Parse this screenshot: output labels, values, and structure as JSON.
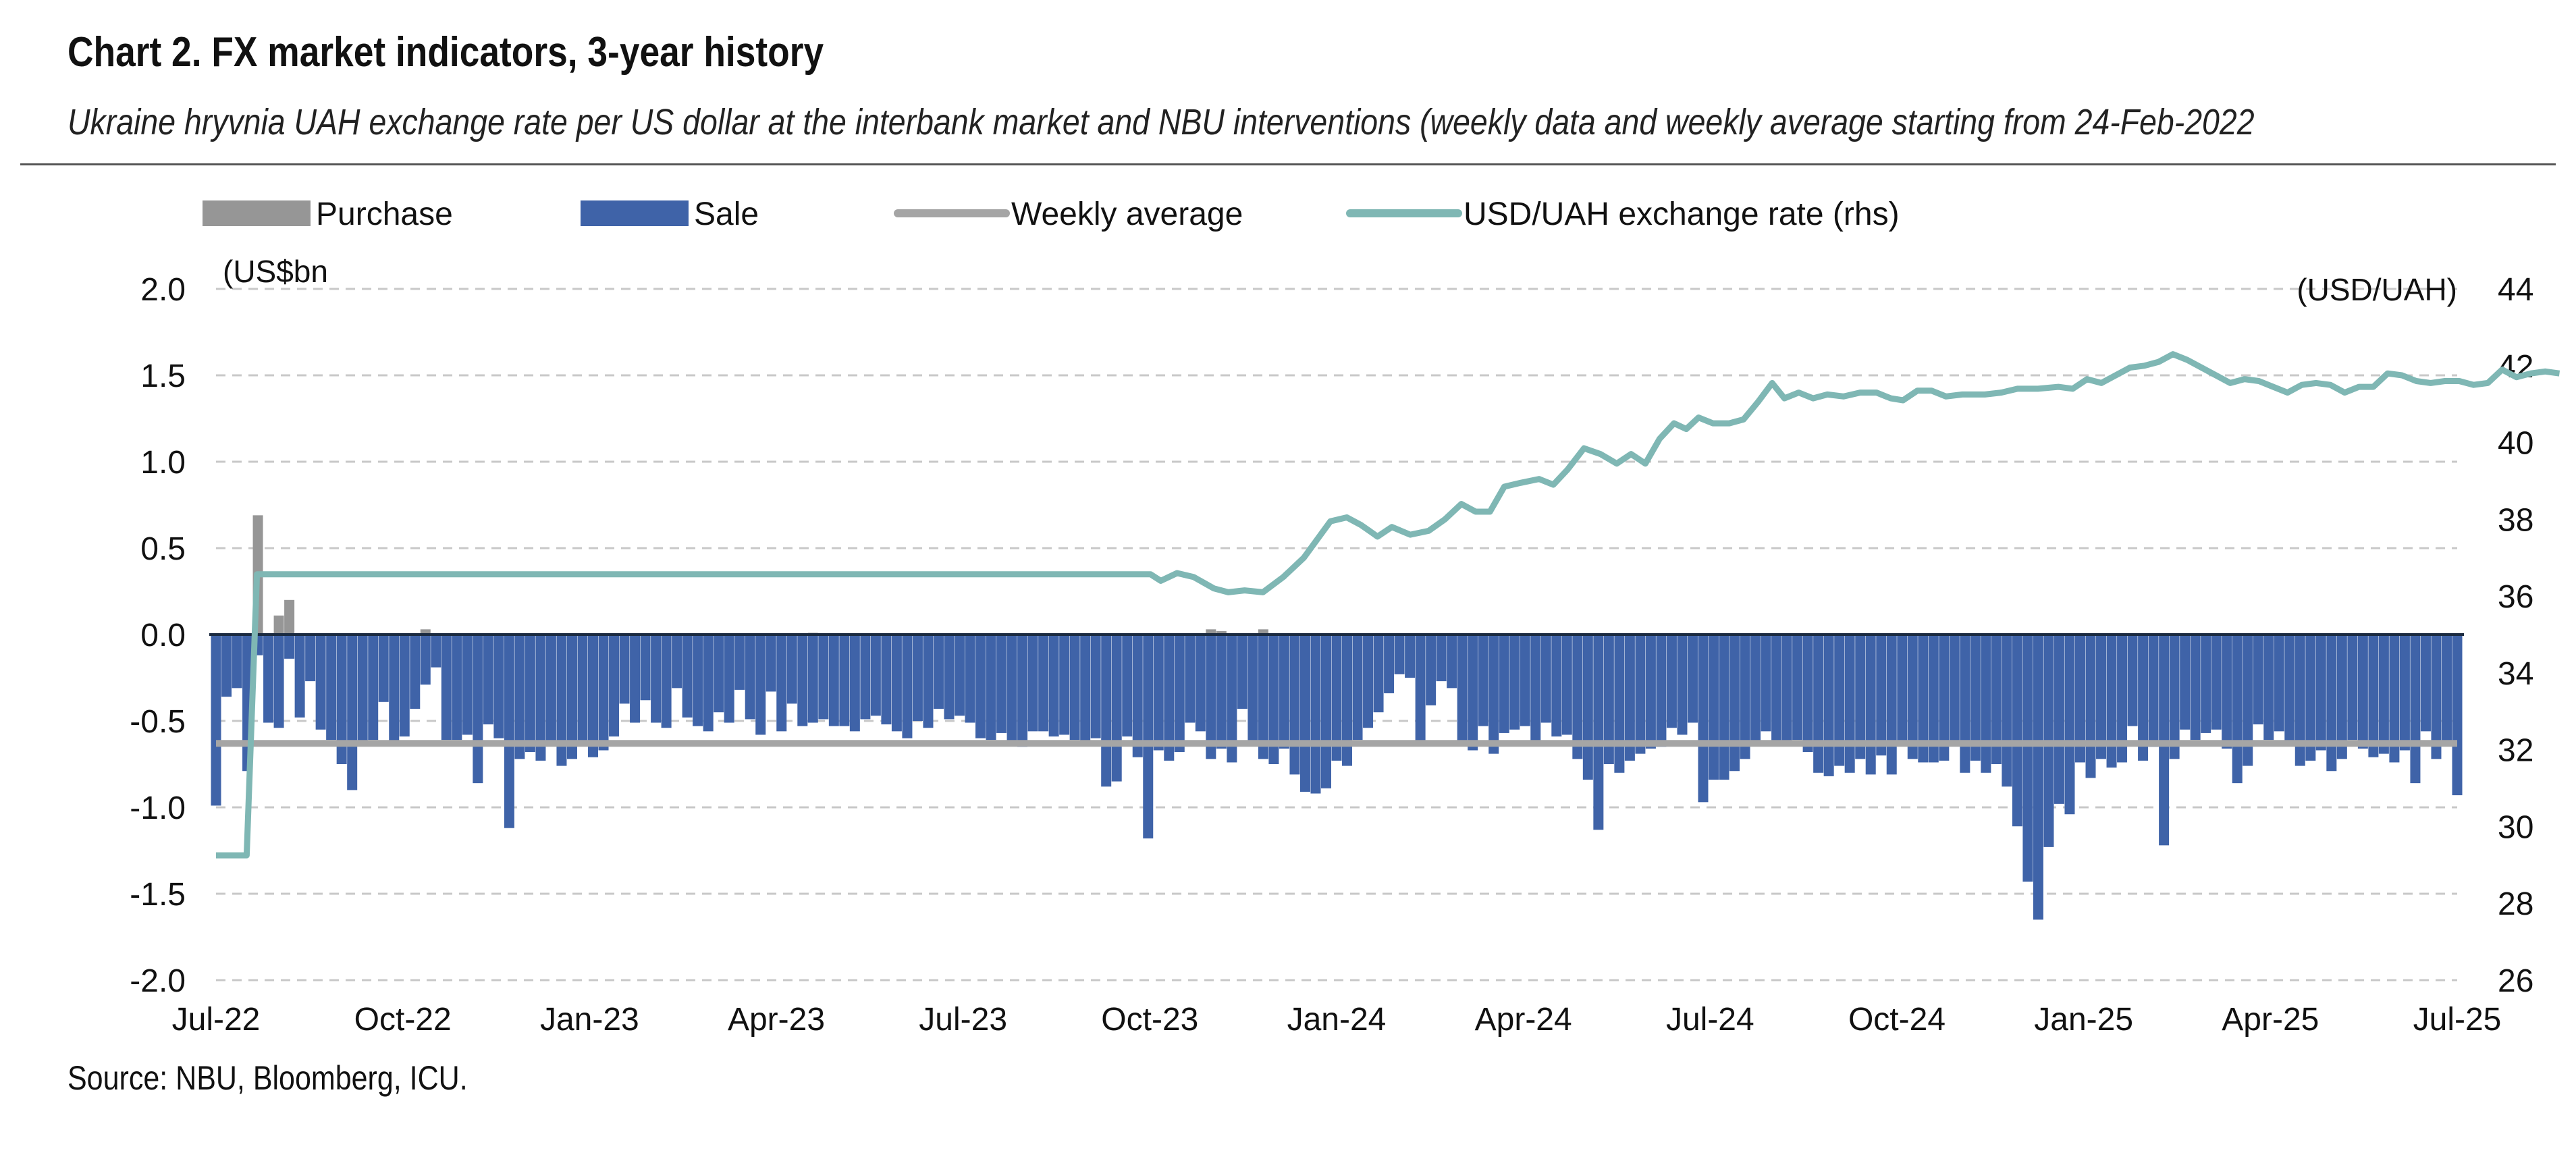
{
  "title": "Chart 2. FX market indicators, 3-year history",
  "subtitle": "Ukraine hryvnia UAH exchange rate per US dollar at the interbank market and NBU interventions (weekly data and weekly average starting from 24-Feb-2022",
  "source": "Source: NBU, Bloomberg, ICU.",
  "colors": {
    "purchase": "#969696",
    "sale": "#3f63a8",
    "weekly_average": "#a5a5a5",
    "exchange_rate": "#7fb7b4",
    "grid": "#c8c8c8",
    "text": "#111111"
  },
  "chart_data": {
    "type": "bar",
    "legend": [
      {
        "key": "purchase",
        "label": "Purchase",
        "swatch": "bar"
      },
      {
        "key": "sale",
        "label": "Sale",
        "swatch": "bar"
      },
      {
        "key": "weekly_average",
        "label": "Weekly average",
        "swatch": "line"
      },
      {
        "key": "exchange_rate",
        "label": "USD/UAH exchange rate (rhs)",
        "swatch": "line"
      }
    ],
    "legend_position": "top",
    "y_left": {
      "unit_label": "(US$bn",
      "min": -2.0,
      "max": 2.0,
      "ticks": [
        "2.0",
        "1.5",
        "1.0",
        "0.5",
        "0.0",
        "-0.5",
        "-1.0",
        "-1.5",
        "-2.0"
      ]
    },
    "y_right": {
      "unit_label": "(USD/UAH)",
      "min": 26,
      "max": 44,
      "ticks": [
        "44",
        "42",
        "40",
        "38",
        "36",
        "34",
        "32",
        "30",
        "28",
        "26"
      ]
    },
    "x_range": [
      "2022-07-01",
      "2025-07-01"
    ],
    "x_ticks": [
      "Jul-22",
      "Oct-22",
      "Jan-23",
      "Apr-23",
      "Jul-23",
      "Oct-23",
      "Jan-24",
      "Apr-24",
      "Jul-24",
      "Oct-24",
      "Jan-25",
      "Apr-25",
      "Jul-25"
    ],
    "grid": true,
    "weekly_average_value": -0.63,
    "purchase": [
      {
        "week": 4,
        "value": 0.69
      },
      {
        "week": 6,
        "value": 0.11
      },
      {
        "week": 7,
        "value": 0.2
      },
      {
        "week": 20,
        "value": 0.03
      },
      {
        "week": 57,
        "value": 0.01
      },
      {
        "week": 95,
        "value": 0.03
      },
      {
        "week": 96,
        "value": 0.02
      },
      {
        "week": 100,
        "value": 0.03
      }
    ],
    "sale": [
      -0.99,
      -0.36,
      -0.31,
      -0.79,
      -0.12,
      -0.51,
      -0.54,
      -0.14,
      -0.48,
      -0.27,
      -0.55,
      -0.61,
      -0.75,
      -0.9,
      -0.63,
      -0.61,
      -0.39,
      -0.62,
      -0.59,
      -0.43,
      -0.29,
      -0.19,
      -0.61,
      -0.61,
      -0.58,
      -0.86,
      -0.52,
      -0.6,
      -1.12,
      -0.72,
      -0.68,
      -0.73,
      -0.64,
      -0.76,
      -0.72,
      -0.64,
      -0.71,
      -0.67,
      -0.59,
      -0.4,
      -0.51,
      -0.38,
      -0.51,
      -0.54,
      -0.31,
      -0.48,
      -0.53,
      -0.56,
      -0.45,
      -0.51,
      -0.32,
      -0.49,
      -0.58,
      -0.33,
      -0.56,
      -0.4,
      -0.53,
      -0.51,
      -0.49,
      -0.53,
      -0.53,
      -0.56,
      -0.49,
      -0.47,
      -0.52,
      -0.56,
      -0.6,
      -0.5,
      -0.54,
      -0.43,
      -0.49,
      -0.47,
      -0.51,
      -0.6,
      -0.61,
      -0.57,
      -0.62,
      -0.65,
      -0.56,
      -0.56,
      -0.59,
      -0.58,
      -0.61,
      -0.63,
      -0.6,
      -0.88,
      -0.85,
      -0.59,
      -0.71,
      -1.18,
      -0.67,
      -0.73,
      -0.68,
      -0.51,
      -0.56,
      -0.72,
      -0.66,
      -0.74,
      -0.43,
      -0.63,
      -0.72,
      -0.75,
      -0.66,
      -0.81,
      -0.91,
      -0.92,
      -0.89,
      -0.73,
      -0.76,
      -0.61,
      -0.54,
      -0.45,
      -0.34,
      -0.23,
      -0.25,
      -0.62,
      -0.41,
      -0.27,
      -0.31,
      -0.64,
      -0.67,
      -0.53,
      -0.69,
      -0.57,
      -0.55,
      -0.53,
      -0.62,
      -0.51,
      -0.59,
      -0.58,
      -0.72,
      -0.84,
      -1.13,
      -0.75,
      -0.8,
      -0.73,
      -0.69,
      -0.66,
      -0.65,
      -0.54,
      -0.58,
      -0.51,
      -0.97,
      -0.84,
      -0.84,
      -0.79,
      -0.72,
      -0.64,
      -0.56,
      -0.64,
      -0.63,
      -0.61,
      -0.68,
      -0.8,
      -0.82,
      -0.76,
      -0.8,
      -0.72,
      -0.81,
      -0.7,
      -0.81,
      -0.63,
      -0.72,
      -0.74,
      -0.74,
      -0.73,
      -0.63,
      -0.8,
      -0.73,
      -0.8,
      -0.75,
      -0.88,
      -1.11,
      -1.43,
      -1.65,
      -1.23,
      -0.98,
      -1.04,
      -0.74,
      -0.83,
      -0.72,
      -0.77,
      -0.74,
      -0.53,
      -0.73,
      -0.65,
      -1.22,
      -0.72,
      -0.55,
      -0.61,
      -0.57,
      -0.55,
      -0.66,
      -0.86,
      -0.76,
      -0.52,
      -0.61,
      -0.56,
      -0.63,
      -0.76,
      -0.73,
      -0.67,
      -0.79,
      -0.72,
      -0.61,
      -0.66,
      -0.71,
      -0.69,
      -0.74,
      -0.67,
      -0.86,
      -0.56,
      -0.72,
      -0.64,
      -0.93
    ],
    "exchange_rate": [
      {
        "date": "2022-07-01",
        "value": 29.25
      },
      {
        "date": "2022-07-16",
        "value": 29.25
      },
      {
        "date": "2022-07-21",
        "value": 36.57
      },
      {
        "date": "2023-10-01",
        "value": 36.57
      },
      {
        "date": "2023-10-06",
        "value": 36.4
      },
      {
        "date": "2023-10-14",
        "value": 36.6
      },
      {
        "date": "2023-10-22",
        "value": 36.5
      },
      {
        "date": "2023-11-01",
        "value": 36.2
      },
      {
        "date": "2023-11-08",
        "value": 36.1
      },
      {
        "date": "2023-11-16",
        "value": 36.15
      },
      {
        "date": "2023-11-25",
        "value": 36.1
      },
      {
        "date": "2023-12-05",
        "value": 36.5
      },
      {
        "date": "2023-12-15",
        "value": 37.0
      },
      {
        "date": "2023-12-28",
        "value": 37.95
      },
      {
        "date": "2024-01-05",
        "value": 38.05
      },
      {
        "date": "2024-01-12",
        "value": 37.85
      },
      {
        "date": "2024-01-20",
        "value": 37.55
      },
      {
        "date": "2024-01-27",
        "value": 37.8
      },
      {
        "date": "2024-02-05",
        "value": 37.6
      },
      {
        "date": "2024-02-14",
        "value": 37.7
      },
      {
        "date": "2024-02-22",
        "value": 38.0
      },
      {
        "date": "2024-03-01",
        "value": 38.4
      },
      {
        "date": "2024-03-08",
        "value": 38.2
      },
      {
        "date": "2024-03-15",
        "value": 38.2
      },
      {
        "date": "2024-03-22",
        "value": 38.85
      },
      {
        "date": "2024-03-30",
        "value": 38.95
      },
      {
        "date": "2024-04-08",
        "value": 39.05
      },
      {
        "date": "2024-04-15",
        "value": 38.9
      },
      {
        "date": "2024-04-22",
        "value": 39.3
      },
      {
        "date": "2024-04-30",
        "value": 39.85
      },
      {
        "date": "2024-05-08",
        "value": 39.7
      },
      {
        "date": "2024-05-16",
        "value": 39.45
      },
      {
        "date": "2024-05-23",
        "value": 39.7
      },
      {
        "date": "2024-05-30",
        "value": 39.45
      },
      {
        "date": "2024-06-06",
        "value": 40.1
      },
      {
        "date": "2024-06-13",
        "value": 40.5
      },
      {
        "date": "2024-06-19",
        "value": 40.35
      },
      {
        "date": "2024-06-25",
        "value": 40.65
      },
      {
        "date": "2024-07-02",
        "value": 40.5
      },
      {
        "date": "2024-07-10",
        "value": 40.5
      },
      {
        "date": "2024-07-17",
        "value": 40.6
      },
      {
        "date": "2024-07-24",
        "value": 41.05
      },
      {
        "date": "2024-07-31",
        "value": 41.55
      },
      {
        "date": "2024-08-06",
        "value": 41.15
      },
      {
        "date": "2024-08-13",
        "value": 41.3
      },
      {
        "date": "2024-08-20",
        "value": 41.15
      },
      {
        "date": "2024-08-27",
        "value": 41.25
      },
      {
        "date": "2024-09-04",
        "value": 41.2
      },
      {
        "date": "2024-09-12",
        "value": 41.3
      },
      {
        "date": "2024-09-20",
        "value": 41.3
      },
      {
        "date": "2024-09-27",
        "value": 41.15
      },
      {
        "date": "2024-10-03",
        "value": 41.1
      },
      {
        "date": "2024-10-10",
        "value": 41.35
      },
      {
        "date": "2024-10-17",
        "value": 41.35
      },
      {
        "date": "2024-10-24",
        "value": 41.2
      },
      {
        "date": "2024-11-01",
        "value": 41.25
      },
      {
        "date": "2024-11-12",
        "value": 41.25
      },
      {
        "date": "2024-11-20",
        "value": 41.3
      },
      {
        "date": "2024-11-28",
        "value": 41.4
      },
      {
        "date": "2024-12-08",
        "value": 41.4
      },
      {
        "date": "2024-12-18",
        "value": 41.45
      },
      {
        "date": "2024-12-25",
        "value": 41.4
      },
      {
        "date": "2025-01-01",
        "value": 41.65
      },
      {
        "date": "2025-01-08",
        "value": 41.55
      },
      {
        "date": "2025-01-15",
        "value": 41.75
      },
      {
        "date": "2025-01-22",
        "value": 41.95
      },
      {
        "date": "2025-01-29",
        "value": 42.0
      },
      {
        "date": "2025-02-05",
        "value": 42.1
      },
      {
        "date": "2025-02-12",
        "value": 42.3
      },
      {
        "date": "2025-02-19",
        "value": 42.15
      },
      {
        "date": "2025-02-26",
        "value": 41.95
      },
      {
        "date": "2025-03-05",
        "value": 41.75
      },
      {
        "date": "2025-03-12",
        "value": 41.55
      },
      {
        "date": "2025-03-19",
        "value": 41.65
      },
      {
        "date": "2025-03-26",
        "value": 41.6
      },
      {
        "date": "2025-04-02",
        "value": 41.45
      },
      {
        "date": "2025-04-09",
        "value": 41.3
      },
      {
        "date": "2025-04-16",
        "value": 41.5
      },
      {
        "date": "2025-04-23",
        "value": 41.55
      },
      {
        "date": "2025-04-30",
        "value": 41.5
      },
      {
        "date": "2025-05-07",
        "value": 41.3
      },
      {
        "date": "2025-05-14",
        "value": 41.45
      },
      {
        "date": "2025-05-21",
        "value": 41.45
      },
      {
        "date": "2025-05-28",
        "value": 41.8
      },
      {
        "date": "2025-06-04",
        "value": 41.75
      },
      {
        "date": "2025-06-11",
        "value": 41.6
      },
      {
        "date": "2025-06-18",
        "value": 41.55
      },
      {
        "date": "2025-06-25",
        "value": 41.6
      },
      {
        "date": "2025-07-02",
        "value": 41.6
      },
      {
        "date": "2025-07-09",
        "value": 41.5
      },
      {
        "date": "2025-07-16",
        "value": 41.55
      },
      {
        "date": "2025-07-23",
        "value": 41.9
      },
      {
        "date": "2025-07-30",
        "value": 41.7
      },
      {
        "date": "2025-08-06",
        "value": 41.8
      },
      {
        "date": "2025-08-13",
        "value": 41.85
      },
      {
        "date": "2025-08-20",
        "value": 41.8
      }
    ]
  }
}
